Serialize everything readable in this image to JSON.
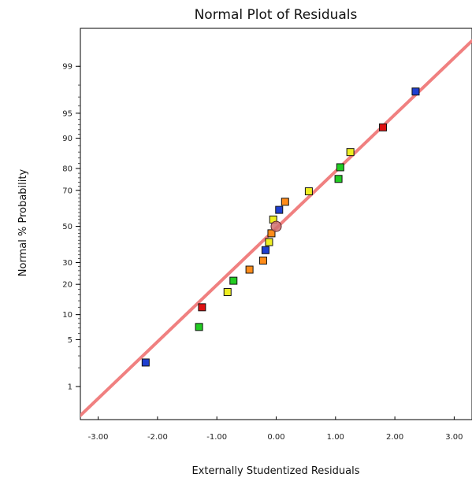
{
  "chart_data": {
    "type": "scatter",
    "title": "Normal Plot of Residuals",
    "xlabel": "Externally Studentized Residuals",
    "ylabel": "Normal % Probability",
    "xlim": [
      -3.3,
      3.3
    ],
    "y_scale": "normal-probability",
    "ylim": [
      0.25,
      99.8
    ],
    "x_ticks": [
      {
        "value": -3,
        "label": "-3.00"
      },
      {
        "value": -2,
        "label": "-2.00"
      },
      {
        "value": -1,
        "label": "-1.00"
      },
      {
        "value": 0,
        "label": "0.00"
      },
      {
        "value": 1,
        "label": "1.00"
      },
      {
        "value": 2,
        "label": "2.00"
      },
      {
        "value": 3,
        "label": "3.00"
      }
    ],
    "y_ticks": [
      {
        "value": 1,
        "label": "1"
      },
      {
        "value": 5,
        "label": "5"
      },
      {
        "value": 10,
        "label": "10"
      },
      {
        "value": 20,
        "label": "20"
      },
      {
        "value": 30,
        "label": "30"
      },
      {
        "value": 50,
        "label": "50"
      },
      {
        "value": 70,
        "label": "70"
      },
      {
        "value": 80,
        "label": "80"
      },
      {
        "value": 90,
        "label": "90"
      },
      {
        "value": 95,
        "label": "95"
      },
      {
        "value": 99,
        "label": "99"
      }
    ],
    "grid": false,
    "reference_line": {
      "color": "#f08080",
      "from": [
        -3.3,
        0.3
      ],
      "to": [
        3.3,
        99.65
      ]
    },
    "points": [
      {
        "x": -2.2,
        "y": 2.4,
        "color": "#1f3fd0"
      },
      {
        "x": -1.3,
        "y": 7.2,
        "color": "#22cc22"
      },
      {
        "x": -1.25,
        "y": 12.0,
        "color": "#dd1111"
      },
      {
        "x": -0.82,
        "y": 17.0,
        "color": "#eeee22"
      },
      {
        "x": -0.72,
        "y": 21.5,
        "color": "#22cc22"
      },
      {
        "x": -0.45,
        "y": 26.5,
        "color": "#ff8c1a"
      },
      {
        "x": -0.22,
        "y": 31.0,
        "color": "#ff8c1a"
      },
      {
        "x": -0.18,
        "y": 36.5,
        "color": "#1f3fd0"
      },
      {
        "x": -0.12,
        "y": 41.0,
        "color": "#eeee22"
      },
      {
        "x": -0.08,
        "y": 46.0,
        "color": "#ff8c1a"
      },
      {
        "x": -0.05,
        "y": 54.0,
        "color": "#eeee22"
      },
      {
        "x": 0.05,
        "y": 59.5,
        "color": "#1f3fd0"
      },
      {
        "x": 0.15,
        "y": 64.0,
        "color": "#ff8c1a"
      },
      {
        "x": 0.55,
        "y": 69.5,
        "color": "#eeee22"
      },
      {
        "x": 1.05,
        "y": 75.5,
        "color": "#22cc22"
      },
      {
        "x": 1.08,
        "y": 80.5,
        "color": "#22cc22"
      },
      {
        "x": 1.25,
        "y": 86.0,
        "color": "#eeee22"
      },
      {
        "x": 1.8,
        "y": 92.5,
        "color": "#dd1111"
      },
      {
        "x": 2.35,
        "y": 97.5,
        "color": "#1f3fd0"
      }
    ],
    "center_marker": {
      "x": 0.0,
      "y": 50.0,
      "color": "#d07070"
    }
  }
}
